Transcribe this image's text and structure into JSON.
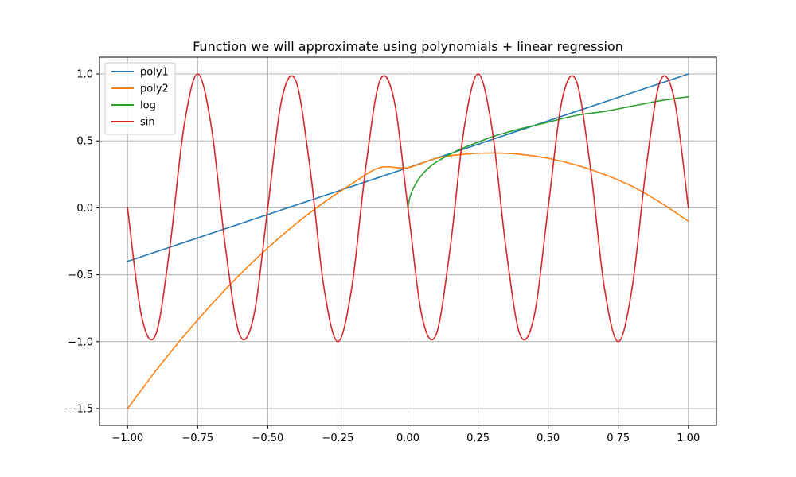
{
  "chart_data": {
    "type": "line",
    "title": "Function we will approximate using polynomials + linear regression",
    "xlabel": "",
    "ylabel": "",
    "xlim": [
      -1.1,
      1.1
    ],
    "ylim": [
      -1.625,
      1.125
    ],
    "grid": true,
    "legend_position": "top-left",
    "x_ticks": [
      -1.0,
      -0.75,
      -0.5,
      -0.25,
      0.0,
      0.25,
      0.5,
      0.75,
      1.0
    ],
    "x_tick_labels": [
      "−1.00",
      "−0.75",
      "−0.50",
      "−0.25",
      "0.00",
      "0.25",
      "0.50",
      "0.75",
      "1.00"
    ],
    "y_ticks": [
      -1.5,
      -1.0,
      -0.5,
      0.0,
      0.5,
      1.0
    ],
    "y_tick_labels": [
      "−1.5",
      "−1.0",
      "−0.5",
      "0.0",
      "0.5",
      "1.0"
    ],
    "x": [
      -1.0,
      -0.9,
      -0.8,
      -0.7,
      -0.6,
      -0.5,
      -0.4,
      -0.3,
      -0.2,
      -0.1,
      0.0,
      0.1,
      0.2,
      0.3,
      0.4,
      0.5,
      0.6,
      0.7,
      0.8,
      0.9,
      1.0
    ],
    "series": [
      {
        "name": "poly1",
        "color": "#1f77b4",
        "values": [
          -0.4,
          -0.33,
          -0.26,
          -0.19,
          -0.12,
          -0.05,
          0.02,
          0.09,
          0.16,
          0.23,
          0.3,
          0.37,
          0.44,
          0.51,
          0.58,
          0.65,
          0.72,
          0.79,
          0.86,
          0.93,
          1.0
        ]
      },
      {
        "name": "poly2",
        "color": "#ff7f0e",
        "values": [
          -1.5,
          -1.22,
          -0.96,
          -0.72,
          -0.5,
          -0.3,
          -0.12,
          0.04,
          0.18,
          0.3,
          0.3,
          0.37,
          0.4,
          0.41,
          0.4,
          0.37,
          0.32,
          0.25,
          0.16,
          0.04,
          -0.1
        ]
      },
      {
        "name": "log",
        "color": "#2ca02c",
        "x": [
          0.0,
          0.005,
          0.01,
          0.02,
          0.04,
          0.06,
          0.08,
          0.1,
          0.15,
          0.2,
          0.25,
          0.3,
          0.4,
          0.5,
          0.6,
          0.7,
          0.8,
          0.9,
          1.0
        ],
        "values": [
          0.0,
          0.06,
          0.1,
          0.15,
          0.22,
          0.27,
          0.31,
          0.34,
          0.4,
          0.45,
          0.49,
          0.53,
          0.59,
          0.64,
          0.69,
          0.72,
          0.76,
          0.8,
          0.83
        ]
      },
      {
        "name": "sin",
        "color": "#d62728",
        "x": [
          -1.0,
          -0.95,
          -0.9,
          -0.85,
          -0.8,
          -0.75,
          -0.7,
          -0.65,
          -0.6,
          -0.55,
          -0.5,
          -0.45,
          -0.4,
          -0.35,
          -0.3,
          -0.25,
          -0.2,
          -0.15,
          -0.1,
          -0.05,
          0.0,
          0.05,
          0.1,
          0.15,
          0.2,
          0.25,
          0.3,
          0.35,
          0.4,
          0.45,
          0.5,
          0.55,
          0.6,
          0.65,
          0.7,
          0.75,
          0.8,
          0.85,
          0.9,
          0.95,
          1.0
        ],
        "values": [
          0.0,
          -0.81,
          -0.95,
          -0.31,
          0.59,
          1.0,
          0.59,
          -0.31,
          -0.95,
          -0.81,
          0.0,
          0.81,
          0.95,
          0.31,
          -0.59,
          -1.0,
          -0.59,
          0.31,
          0.95,
          0.81,
          0.0,
          -0.81,
          -0.95,
          -0.31,
          0.59,
          1.0,
          0.59,
          -0.31,
          -0.95,
          -0.81,
          0.0,
          0.81,
          0.95,
          0.31,
          -0.59,
          -1.0,
          -0.59,
          0.31,
          0.95,
          0.81,
          0.0
        ]
      }
    ]
  }
}
